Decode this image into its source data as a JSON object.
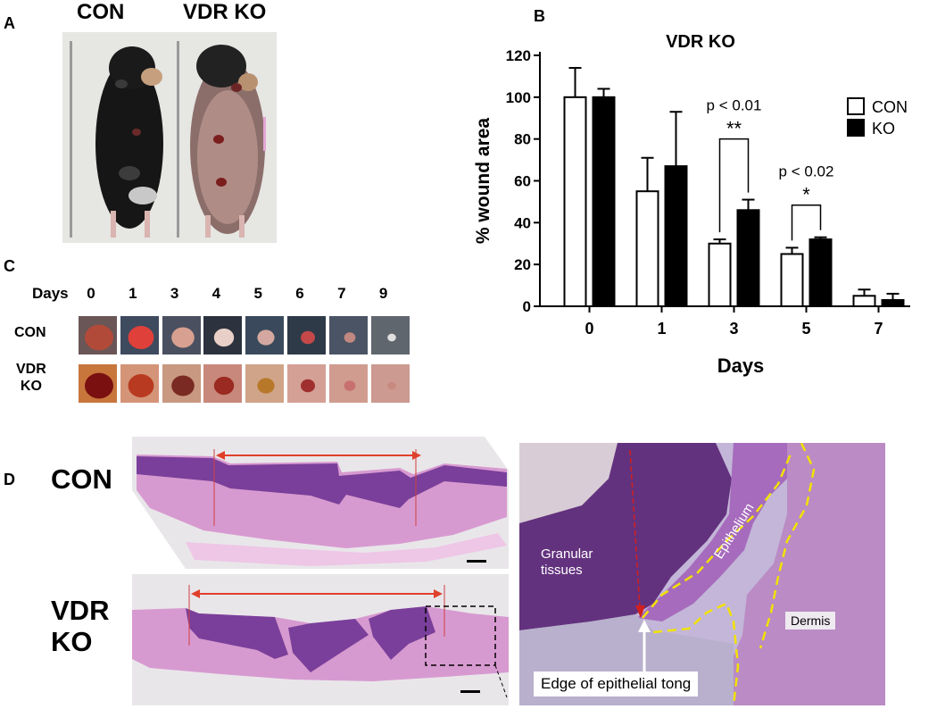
{
  "panels": {
    "A": {
      "label": "A",
      "con_title": "CON",
      "ko_title": "VDR KO"
    },
    "B": {
      "label": "B"
    },
    "C": {
      "label": "C",
      "days_label": "Days",
      "days": [
        "0",
        "1",
        "3",
        "4",
        "5",
        "6",
        "7",
        "9"
      ],
      "row_con": "CON",
      "row_ko_line1": "VDR",
      "row_ko_line2": "KO"
    },
    "D": {
      "label": "D",
      "con": "CON",
      "ko_line1": "VDR",
      "ko_line2": "KO",
      "zoom_labels": {
        "granular_line1": "Granular",
        "granular_line2": "tissues",
        "epithelium": "Epithelium",
        "dermis": "Dermis",
        "edge": "Edge of epithelial tong"
      }
    }
  },
  "colors": {
    "con_fill": "#ffffff",
    "ko_fill": "#000000",
    "arrow_red": "#e0402a",
    "epithelium_outline": "#f2e200",
    "histology_purple": "#7a3f9a",
    "histology_pink": "#d79ad0"
  },
  "chart_data": {
    "type": "bar",
    "title": "VDR KO",
    "xlabel": "Days",
    "ylabel": "% wound area",
    "categories": [
      "0",
      "1",
      "3",
      "5",
      "7"
    ],
    "ylim": [
      0,
      120
    ],
    "yticks": [
      "0",
      "20",
      "40",
      "60",
      "80",
      "100",
      "120"
    ],
    "legend_position": "top-right",
    "series": [
      {
        "name": "CON",
        "values": [
          100,
          55,
          30,
          25,
          5
        ],
        "errors": [
          14,
          16,
          2,
          3,
          3
        ]
      },
      {
        "name": "KO",
        "values": [
          100,
          67,
          46,
          32,
          3
        ],
        "errors": [
          4,
          26,
          5,
          1,
          3
        ]
      }
    ],
    "annotations": [
      {
        "category": "3",
        "p_text": "p < 0.01",
        "stars": "**"
      },
      {
        "category": "5",
        "p_text": "p < 0.02",
        "stars": "*"
      }
    ]
  }
}
